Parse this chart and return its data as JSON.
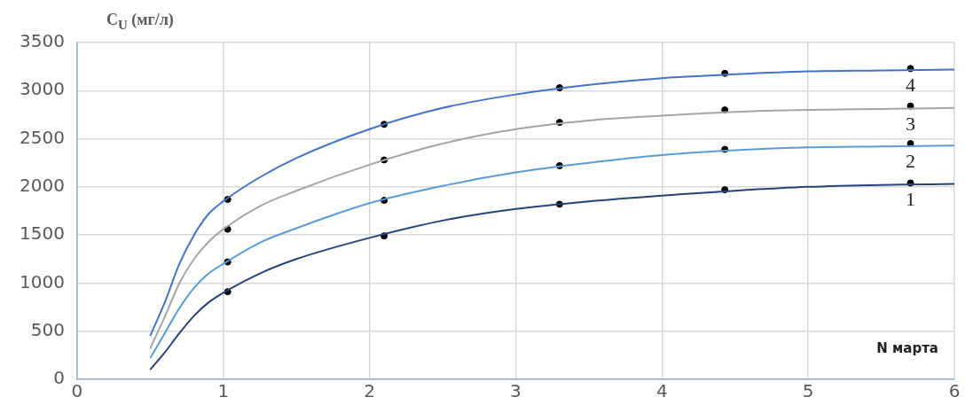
{
  "chart_data": {
    "type": "line",
    "xlabel": "N марта",
    "ylabel": "C$_{U}$ (мг/л)",
    "xlim": [
      0,
      6
    ],
    "xticks": [
      0,
      1,
      2,
      3,
      4,
      5,
      6
    ],
    "ylim": [
      0,
      3500
    ],
    "yticks": [
      0,
      500,
      1000,
      1500,
      2000,
      2500,
      3000,
      3500
    ],
    "grid": true,
    "legend": false,
    "line_style": "solid",
    "series": [
      {
        "name": "1",
        "marker": "none",
        "color": "#264478",
        "x": [
          0.5,
          0.6,
          0.7,
          0.8,
          0.9,
          1,
          1.25,
          1.5,
          2,
          2.5,
          3,
          3.5,
          4,
          4.5,
          5,
          5.5,
          6
        ],
        "values": [
          100,
          280,
          480,
          660,
          800,
          900,
          1100,
          1250,
          1470,
          1650,
          1770,
          1850,
          1910,
          1960,
          2000,
          2020,
          2030
        ]
      },
      {
        "name": "2",
        "marker": "none",
        "color": "#5b9bd5",
        "x": [
          0.5,
          0.6,
          0.7,
          0.8,
          0.9,
          1,
          1.25,
          1.5,
          2,
          2.5,
          3,
          3.5,
          4,
          4.5,
          5,
          5.5,
          6
        ],
        "values": [
          220,
          480,
          740,
          950,
          1100,
          1200,
          1420,
          1570,
          1830,
          2010,
          2150,
          2250,
          2330,
          2380,
          2410,
          2420,
          2430
        ]
      },
      {
        "name": "3",
        "marker": "none",
        "color": "#a5a5a5",
        "x": [
          0.5,
          0.6,
          0.7,
          0.8,
          0.9,
          1,
          1.25,
          1.5,
          2,
          2.5,
          3,
          3.5,
          4,
          4.5,
          5,
          5.5,
          6
        ],
        "values": [
          320,
          650,
          1000,
          1250,
          1430,
          1560,
          1800,
          1960,
          2230,
          2450,
          2600,
          2690,
          2740,
          2780,
          2800,
          2810,
          2820
        ]
      },
      {
        "name": "4",
        "marker": "none",
        "color": "#4472c4",
        "x": [
          0.5,
          0.6,
          0.7,
          0.8,
          0.9,
          1,
          1.25,
          1.5,
          2,
          2.5,
          3,
          3.5,
          4,
          4.5,
          5,
          5.5,
          6
        ],
        "values": [
          450,
          800,
          1200,
          1500,
          1720,
          1850,
          2100,
          2300,
          2600,
          2820,
          2960,
          3060,
          3130,
          3170,
          3200,
          3210,
          3220
        ]
      },
      {
        "type": "scatter",
        "marker": "circle",
        "color": "#000000",
        "x": [
          1.03,
          2.1,
          3.3,
          4.43,
          5.7
        ],
        "values": [
          910,
          1490,
          1820,
          1970,
          2040
        ]
      },
      {
        "type": "scatter",
        "marker": "circle",
        "color": "#000000",
        "x": [
          1.03,
          2.1,
          3.3,
          4.43,
          5.7
        ],
        "values": [
          1220,
          1860,
          2220,
          2390,
          2450
        ]
      },
      {
        "type": "scatter",
        "marker": "circle",
        "color": "#000000",
        "x": [
          1.03,
          2.1,
          3.3,
          4.43,
          5.7
        ],
        "values": [
          1560,
          2280,
          2670,
          2800,
          2840
        ]
      },
      {
        "type": "scatter",
        "marker": "circle",
        "color": "#000000",
        "x": [
          1.03,
          2.1,
          3.3,
          4.43,
          5.7
        ],
        "values": [
          1870,
          2650,
          3030,
          3180,
          3230
        ]
      }
    ]
  }
}
